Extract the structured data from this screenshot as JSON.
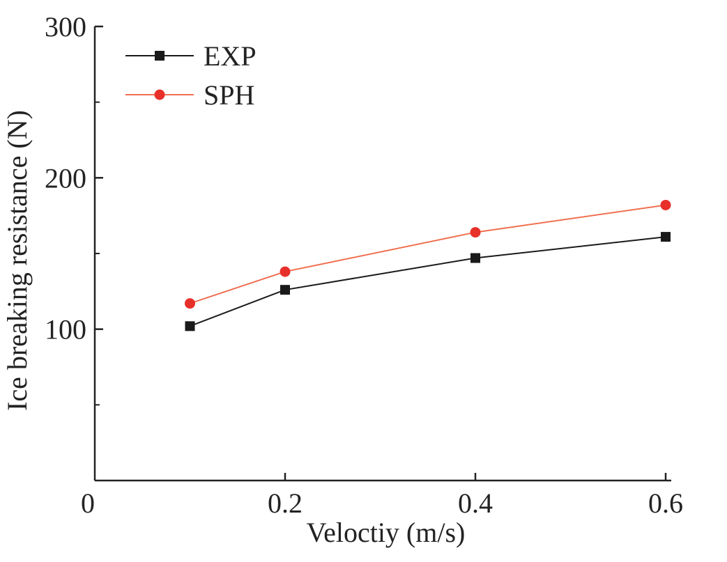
{
  "chart_data": {
    "type": "line",
    "title": "",
    "xlabel": "Veloctiy (m/s)",
    "ylabel": "Ice breaking resistance (N)",
    "xlim": [
      0,
      0.6
    ],
    "ylim": [
      0,
      300
    ],
    "x_ticks": [
      "0",
      "0.2",
      "0.4",
      "0.6"
    ],
    "x_tick_values": [
      0,
      0.2,
      0.4,
      0.6
    ],
    "y_ticks": [
      "100",
      "200",
      "300"
    ],
    "y_tick_values": [
      100,
      200,
      300
    ],
    "grid": false,
    "legend_position": "top-left",
    "series": [
      {
        "name": "EXP",
        "color": "#1a1a1a",
        "marker": "square",
        "x": [
          0.1,
          0.2,
          0.4,
          0.6
        ],
        "values": [
          102,
          126,
          147,
          161
        ]
      },
      {
        "name": "SPH",
        "color": "#f07050",
        "marker_color": "#e8302a",
        "marker": "circle",
        "x": [
          0.1,
          0.2,
          0.4,
          0.6
        ],
        "values": [
          117,
          138,
          164,
          182
        ]
      }
    ]
  }
}
